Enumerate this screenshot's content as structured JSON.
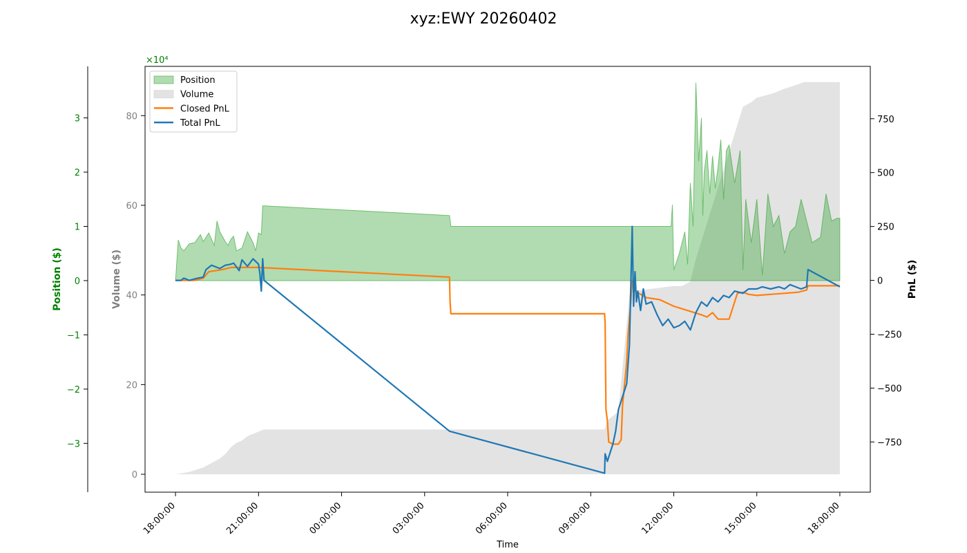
{
  "chart_data": {
    "type": "line",
    "title": "xyz:EWY 20260402",
    "xlabel": "Time",
    "x_ticks": [
      "18:00:00",
      "21:00:00",
      "00:00:00",
      "03:00:00",
      "06:00:00",
      "09:00:00",
      "12:00:00",
      "15:00:00",
      "18:00:00"
    ],
    "x_unit": "hours since 18:00:00",
    "xlim": [
      -1.1,
      25.1
    ],
    "axes": {
      "position": {
        "label": "Position ($)",
        "color": "#008000",
        "scale_label": "×10⁴",
        "ylim": [
          -39000,
          39500
        ],
        "ticks": [
          -30000,
          -20000,
          -10000,
          0,
          10000,
          20000,
          30000
        ],
        "tick_labels": [
          "−3",
          "−2",
          "−1",
          "0",
          "1",
          "2",
          "3"
        ]
      },
      "volume": {
        "label": "Volume ($)",
        "color": "#808080",
        "ylim": [
          -4,
          91
        ],
        "ticks": [
          0,
          20,
          40,
          60,
          80
        ],
        "tick_labels": [
          "0",
          "20",
          "40",
          "60",
          "80"
        ]
      },
      "pnl": {
        "label": "PnL ($)",
        "color": "#000000",
        "ylim": [
          -983,
          993
        ],
        "ticks": [
          -750,
          -500,
          -250,
          0,
          250,
          500,
          750
        ],
        "tick_labels": [
          "−750",
          "−500",
          "−250",
          "0",
          "250",
          "500",
          "750"
        ]
      }
    },
    "legend": {
      "placement": "top-left",
      "entries": [
        {
          "label": "Position",
          "kind": "patch",
          "color": "#2ca02c"
        },
        {
          "label": "Volume",
          "kind": "patch",
          "color": "#c8c8c8"
        },
        {
          "label": "Closed PnL",
          "kind": "line",
          "color": "#ff7f0e"
        },
        {
          "label": "Total PnL",
          "kind": "line",
          "color": "#1f77b4"
        }
      ]
    },
    "series": [
      {
        "name": "Position",
        "axis": "position",
        "kind": "area",
        "color": "#2ca02c",
        "x": [
          0,
          0.1,
          0.2,
          0.3,
          0.5,
          0.7,
          0.9,
          1.0,
          1.2,
          1.4,
          1.5,
          1.6,
          1.8,
          1.9,
          2.0,
          2.1,
          2.2,
          2.4,
          2.6,
          2.8,
          2.9,
          3.0,
          3.1,
          3.15,
          3.2,
          9.9,
          9.95,
          17.9,
          17.95,
          18.0,
          18.2,
          18.4,
          18.5,
          18.6,
          18.7,
          18.8,
          18.9,
          19.0,
          19.05,
          19.1,
          19.2,
          19.3,
          19.4,
          19.5,
          19.6,
          19.7,
          19.8,
          19.9,
          20.0,
          20.2,
          20.4,
          20.5,
          20.6,
          20.8,
          21.0,
          21.2,
          21.4,
          21.6,
          21.8,
          22.0,
          22.2,
          22.4,
          22.6,
          22.8,
          23.0,
          23.3,
          23.5,
          23.7,
          23.9,
          24.0
        ],
        "y": [
          0,
          7500,
          6000,
          5500,
          6800,
          7000,
          8500,
          7200,
          8800,
          6500,
          11000,
          9000,
          7200,
          6500,
          7600,
          8200,
          5500,
          6000,
          9000,
          7000,
          5500,
          8800,
          8500,
          13800,
          13800,
          12000,
          10000,
          10000,
          14000,
          2000,
          5000,
          9000,
          3000,
          18000,
          10000,
          36500,
          22000,
          30000,
          12000,
          20000,
          24000,
          16000,
          23000,
          17000,
          21000,
          26000,
          15000,
          24000,
          25000,
          18000,
          24000,
          2000,
          15000,
          7000,
          15000,
          1000,
          16000,
          10000,
          12000,
          5000,
          9000,
          10000,
          15000,
          11000,
          7000,
          8000,
          16000,
          11000,
          11500,
          11500
        ]
      },
      {
        "name": "Volume",
        "axis": "volume",
        "kind": "area",
        "color": "#c8c8c8",
        "x": [
          0,
          0.5,
          1.0,
          1.3,
          1.6,
          1.8,
          2.0,
          2.2,
          2.4,
          2.6,
          2.8,
          3.0,
          3.2,
          9.9,
          15.5,
          15.6,
          16.0,
          16.4,
          16.6,
          16.7,
          18.0,
          18.3,
          18.6,
          18.8,
          19.0,
          19.3,
          19.6,
          20.0,
          20.3,
          20.5,
          20.8,
          21.0,
          21.3,
          21.6,
          22.0,
          22.5,
          22.7,
          22.9,
          24.0
        ],
        "y": [
          0,
          0.5,
          1.5,
          2.5,
          3.5,
          4.5,
          6,
          7,
          7.5,
          8.5,
          9,
          9.5,
          10,
          10,
          10,
          12,
          14,
          40,
          40,
          41,
          42,
          42,
          43,
          48,
          52,
          58,
          64,
          72,
          78,
          82,
          83,
          84,
          84.5,
          85,
          86,
          87,
          87.5,
          87.5,
          87.5
        ]
      },
      {
        "name": "Closed PnL",
        "axis": "pnl",
        "kind": "line",
        "color": "#ff7f0e",
        "x": [
          0,
          0.7,
          1.0,
          1.1,
          1.2,
          1.7,
          2.0,
          3.0,
          9.9,
          9.92,
          9.95,
          15.5,
          15.52,
          15.55,
          15.6,
          15.65,
          15.8,
          16.0,
          16.1,
          16.15,
          16.3,
          16.35,
          16.45,
          16.5,
          16.6,
          17.0,
          17.5,
          18.0,
          18.5,
          19.0,
          19.2,
          19.4,
          19.6,
          20.0,
          20.3,
          20.5,
          20.7,
          21.0,
          21.5,
          22.0,
          22.5,
          22.8,
          22.85,
          24.0
        ],
        "y": [
          0,
          0,
          10,
          25,
          40,
          50,
          60,
          60,
          15,
          -100,
          -155,
          -155,
          -200,
          -600,
          -650,
          -750,
          -760,
          -760,
          -740,
          -580,
          -380,
          -250,
          -100,
          0,
          -50,
          -80,
          -90,
          -120,
          -140,
          -160,
          -170,
          -150,
          -180,
          -180,
          -60,
          -55,
          -65,
          -70,
          -65,
          -60,
          -55,
          -45,
          -25,
          -25
        ]
      },
      {
        "name": "Total PnL",
        "axis": "pnl",
        "kind": "line",
        "color": "#1f77b4",
        "x": [
          0,
          0.2,
          0.3,
          0.5,
          0.8,
          1.0,
          1.1,
          1.3,
          1.6,
          1.8,
          2.0,
          2.1,
          2.3,
          2.4,
          2.6,
          2.8,
          3.0,
          3.05,
          3.1,
          3.15,
          3.2,
          9.9,
          15.5,
          15.52,
          15.6,
          15.7,
          15.8,
          15.9,
          16.0,
          16.1,
          16.2,
          16.3,
          16.4,
          16.5,
          16.55,
          16.6,
          16.65,
          16.7,
          16.8,
          16.9,
          17.0,
          17.2,
          17.4,
          17.6,
          17.8,
          18.0,
          18.2,
          18.4,
          18.6,
          18.8,
          19.0,
          19.2,
          19.4,
          19.6,
          19.8,
          20.0,
          20.2,
          20.5,
          20.7,
          21.0,
          21.2,
          21.5,
          21.8,
          22.0,
          22.2,
          22.4,
          22.6,
          22.8,
          22.85,
          24.0
        ],
        "y": [
          0,
          0,
          10,
          0,
          10,
          15,
          50,
          70,
          55,
          70,
          75,
          80,
          45,
          95,
          65,
          100,
          75,
          30,
          -50,
          100,
          0,
          -700,
          -895,
          -805,
          -840,
          -800,
          -760,
          -700,
          -600,
          -560,
          -520,
          -480,
          -300,
          250,
          -120,
          40,
          -100,
          -50,
          -140,
          -40,
          -110,
          -100,
          -160,
          -210,
          -180,
          -220,
          -210,
          -190,
          -230,
          -150,
          -100,
          -120,
          -80,
          -100,
          -70,
          -80,
          -50,
          -60,
          -40,
          -40,
          -30,
          -40,
          -30,
          -40,
          -20,
          -30,
          -40,
          -30,
          50,
          -30
        ]
      }
    ]
  }
}
